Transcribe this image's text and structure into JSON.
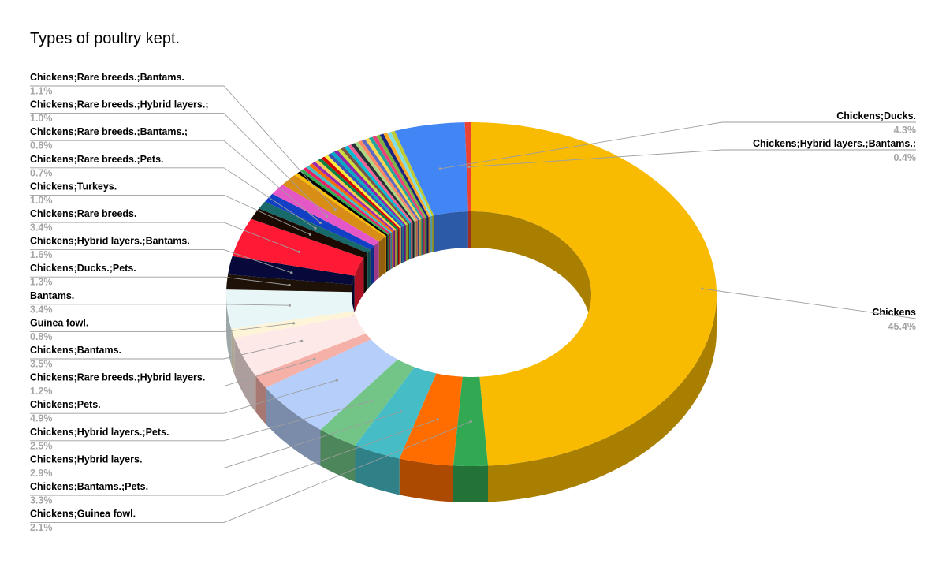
{
  "chart_data": {
    "type": "pie",
    "style": "3d-donut",
    "title": "Types of poultry kept.",
    "slices": [
      {
        "label": "Chickens",
        "percent": "45.4%",
        "value": 45.4,
        "color": "#F9BB02",
        "side": "right"
      },
      {
        "label": "Chickens;Guinea fowl.",
        "percent": "2.1%",
        "value": 2.1,
        "color": "#33A853",
        "side": "left"
      },
      {
        "label": "Chickens;Bantams.;Pets.",
        "percent": "3.3%",
        "value": 3.3,
        "color": "#FF6D01",
        "side": "left"
      },
      {
        "label": "Chickens;Hybrid layers.",
        "percent": "2.9%",
        "value": 2.9,
        "color": "#46BDC6",
        "side": "left"
      },
      {
        "label": "Chickens;Hybrid layers.;Pets.",
        "percent": "2.5%",
        "value": 2.5,
        "color": "#72C587",
        "side": "left"
      },
      {
        "label": "Chickens;Pets.",
        "percent": "4.9%",
        "value": 4.9,
        "color": "#B5CEFA",
        "side": "left"
      },
      {
        "label": "Chickens;Rare breeds.;Hybrid layers.",
        "percent": "1.2%",
        "value": 1.2,
        "color": "#F5B0A8",
        "side": "left"
      },
      {
        "label": "Chickens;Bantams.",
        "percent": "3.5%",
        "value": 3.5,
        "color": "#FDE9E7",
        "side": "left"
      },
      {
        "label": "Guinea fowl.",
        "percent": "0.8%",
        "value": 0.8,
        "color": "#FEF5D8",
        "side": "left"
      },
      {
        "label": "Bantams.",
        "percent": "3.4%",
        "value": 3.4,
        "color": "#E8F6F7",
        "side": "left"
      },
      {
        "label": "Chickens;Ducks.;Pets.",
        "percent": "1.3%",
        "value": 1.3,
        "color": "#1E1208",
        "side": "left"
      },
      {
        "label": "Chickens;Hybrid layers.;Bantams.",
        "percent": "1.6%",
        "value": 1.6,
        "color": "#06093A",
        "side": "left"
      },
      {
        "label": "Chickens;Rare breeds.",
        "percent": "3.4%",
        "value": 3.4,
        "color": "#FE1A35",
        "side": "left"
      },
      {
        "label": "Chickens;Turkeys.",
        "percent": "1.0%",
        "value": 1.0,
        "color": "#1A0A02",
        "side": "left"
      },
      {
        "label": "Chickens;Rare breeds.;Pets.",
        "percent": "0.7%",
        "value": 0.7,
        "color": "#17696A",
        "side": "left"
      },
      {
        "label": "Chickens;Rare breeds.;Bantams.;",
        "percent": "0.8%",
        "value": 0.8,
        "color": "#1240C4",
        "side": "left"
      },
      {
        "label": "Chickens;Rare breeds.;Hybrid layers.;",
        "percent": "1.0%",
        "value": 1.0,
        "color": "#E556C6",
        "side": "left"
      },
      {
        "label": "Chickens;Rare breeds.;Bantams.",
        "percent": "1.1%",
        "value": 1.1,
        "color": "#D88D16",
        "side": "left"
      },
      {
        "label": "",
        "percent": "",
        "value": 7.2,
        "color": "#888888",
        "side": "none",
        "multicolor": true
      },
      {
        "label": "Chickens;Ducks.",
        "percent": "4.3%",
        "value": 4.3,
        "color": "#4285F4",
        "side": "right"
      },
      {
        "label": "Chickens;Hybrid layers.;Bantams.:",
        "percent": "0.4%",
        "value": 0.4,
        "color": "#EA4335",
        "side": "right"
      }
    ],
    "thin_slice_colors": [
      "#FBBC04",
      "#000000",
      "#34A853",
      "#E91E63",
      "#46BDC6",
      "#FF6D01",
      "#9C27B0",
      "#F7CB4D",
      "#0B8043",
      "#D50000",
      "#FFEB3B",
      "#3F51B5",
      "#00ACC1",
      "#8E24AA",
      "#CDDC39",
      "#795548",
      "#00BCD4",
      "#F06292",
      "#263238",
      "#AED581",
      "#FF8A65",
      "#5C6BC0",
      "#FFD54F",
      "#26A69A",
      "#EC407A",
      "#7CB342",
      "#1A237E",
      "#FFA726",
      "#80DEEA",
      "#C0CA33"
    ]
  }
}
